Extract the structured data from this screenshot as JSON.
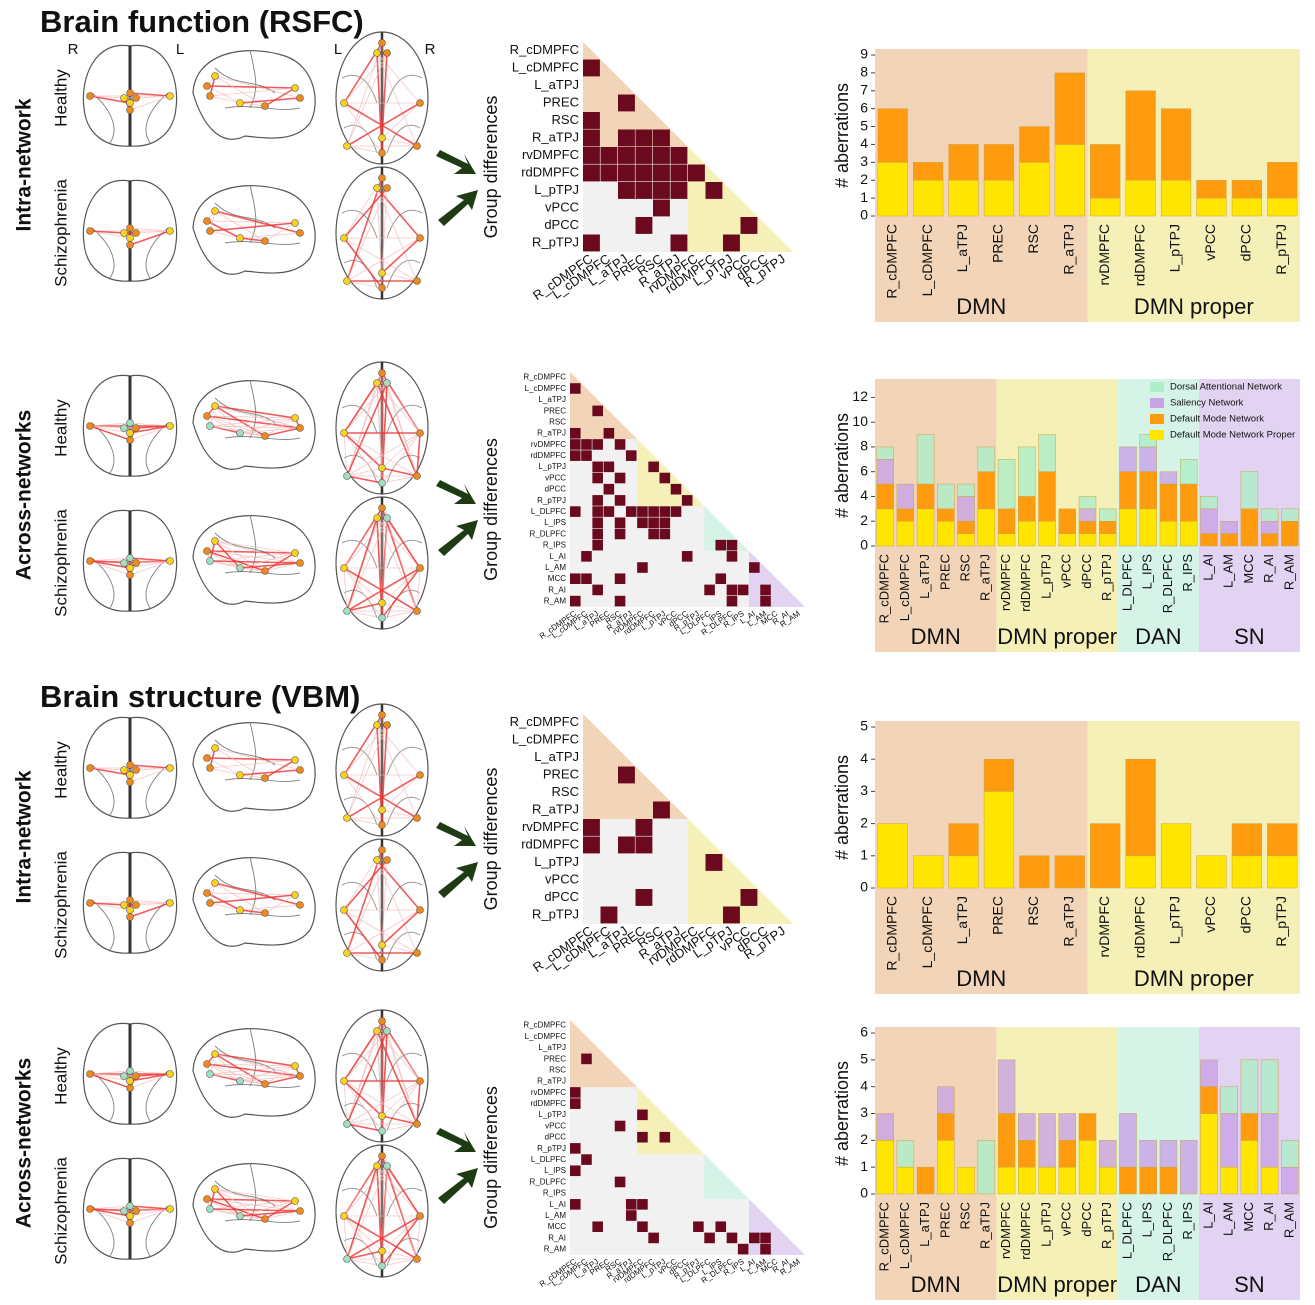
{
  "sections": [
    "Brain function (RSFC)",
    "Brain structure (VBM)"
  ],
  "orientation_labels": [
    "R",
    "L",
    "L",
    "R"
  ],
  "rows": [
    {
      "label": "Intra-network",
      "groups": [
        "Healthy",
        "Schizophrenia"
      ]
    },
    {
      "label": "Across-networks",
      "groups": [
        "Healthy",
        "Schizophrenia"
      ]
    },
    {
      "label": "Intra-network",
      "groups": [
        "Healthy",
        "Schizophrenia"
      ]
    },
    {
      "label": "Across-networks",
      "groups": [
        "Healthy",
        "Schizophrenia"
      ]
    }
  ],
  "chart_data": [
    {
      "type": "heatmap",
      "ylabel": "Group differences",
      "color": "#6b0a1e",
      "labels": [
        "R_cDMPFC",
        "L_cDMPFC",
        "L_aTPJ",
        "PREC",
        "RSC",
        "R_aTPJ",
        "rvDMPFC",
        "rdDMPFC",
        "L_pTPJ",
        "vPCC",
        "dPCC",
        "R_pTPJ"
      ],
      "cells": [
        [],
        [
          0
        ],
        [],
        [
          2
        ],
        [
          0
        ],
        [
          0,
          2,
          3,
          4
        ],
        [
          0,
          1,
          2,
          3,
          4,
          5
        ],
        [
          0,
          1,
          2,
          3,
          4,
          5,
          6
        ],
        [
          2,
          3,
          4,
          5,
          7
        ],
        [
          4
        ],
        [
          3,
          9
        ],
        [
          0,
          5,
          8
        ]
      ]
    },
    {
      "type": "bar",
      "ylabel": "# aberrations",
      "categories": [
        "R_cDMPFC",
        "L_cDMPFC",
        "L_aTPJ",
        "PREC",
        "RSC",
        "R_aTPJ",
        "rvDMPFC",
        "rdDMPFC",
        "L_pTPJ",
        "vPCC",
        "dPCC",
        "R_pTPJ"
      ],
      "series": [
        {
          "color": "#ffe500",
          "values": [
            3,
            2,
            2,
            2,
            3,
            4,
            1,
            2,
            2,
            1,
            1,
            1
          ]
        },
        {
          "color": "#ff9b0f",
          "values": [
            3,
            1,
            2,
            2,
            2,
            4,
            3,
            5,
            4,
            1,
            1,
            2
          ]
        }
      ],
      "ylim": [
        0,
        9
      ],
      "yticks": [
        0,
        1,
        2,
        3,
        4,
        5,
        6,
        7,
        8,
        9
      ],
      "groups": [
        {
          "label": "DMN",
          "size": 6,
          "color": "#f2d5b8"
        },
        {
          "label": "DMN proper",
          "size": 6,
          "color": "#f4f0b8"
        }
      ]
    },
    {
      "type": "heatmap",
      "ylabel": "Group differences",
      "color": "#6b0a1e",
      "labels": [
        "R_cDMPFC",
        "L_cDMPFC",
        "L_aTPJ",
        "PREC",
        "RSC",
        "R_aTPJ",
        "rvDMPFC",
        "rdDMPFC",
        "L_pTPJ",
        "vPCC",
        "dPCC",
        "R_pTPJ",
        "L_DLPFC",
        "L_IPS",
        "R_DLPFC",
        "R_IPS",
        "L_AI",
        "L_AM",
        "MCC",
        "R_AI",
        "R_AM"
      ],
      "cells": [
        [],
        [
          0
        ],
        [],
        [
          2
        ],
        [],
        [
          0,
          3
        ],
        [
          0,
          1,
          2,
          4
        ],
        [
          0,
          1,
          5
        ],
        [
          2,
          3,
          7
        ],
        [
          2,
          4,
          8
        ],
        [
          3,
          9
        ],
        [
          2,
          4,
          10
        ],
        [
          0,
          2,
          3,
          5,
          6,
          7,
          8,
          9
        ],
        [
          2,
          4,
          6,
          7,
          8
        ],
        [
          2,
          4,
          7,
          8
        ],
        [
          2,
          13,
          14
        ],
        [
          1,
          10,
          14
        ],
        [
          6,
          16
        ],
        [
          0,
          1,
          4,
          13
        ],
        [
          2,
          12,
          14,
          15,
          17
        ],
        [
          0,
          4,
          14,
          17
        ]
      ]
    },
    {
      "type": "bar",
      "ylabel": "# aberrations",
      "categories": [
        "R_cDMPFC",
        "L_cDMPFC",
        "L_aTPJ",
        "PREC",
        "RSC",
        "R_aTPJ",
        "rvDMPFC",
        "rdDMPFC",
        "L_pTPJ",
        "vPCC",
        "dPCC",
        "R_pTPJ",
        "L_DLPFC",
        "L_IPS",
        "R_DLPFC",
        "R_IPS",
        "L_AI",
        "L_AM",
        "MCC",
        "R_AI",
        "R_AM"
      ],
      "series": [
        {
          "name": "Default Mode Network Proper",
          "color": "#ffe500",
          "values": [
            3,
            2,
            3,
            2,
            1,
            3,
            1,
            2,
            2,
            1,
            1,
            1,
            3,
            3,
            2,
            2,
            0,
            0,
            0,
            0,
            0
          ]
        },
        {
          "name": "Default Mode Network",
          "color": "#ff9b0f",
          "values": [
            2,
            1,
            2,
            1,
            1,
            3,
            2,
            2,
            4,
            2,
            1,
            1,
            3,
            3,
            3,
            3,
            1,
            1,
            3,
            1,
            2
          ]
        },
        {
          "name": "Saliency Network",
          "color": "#c8a3e6",
          "values": [
            2,
            2,
            0,
            0,
            2,
            0,
            0,
            0,
            0,
            0,
            1,
            0,
            2,
            2,
            1,
            0,
            2,
            1,
            0,
            1,
            0
          ]
        },
        {
          "name": "Dorsal Attentional Network",
          "color": "#aeeec8",
          "values": [
            1,
            0,
            4,
            2,
            1,
            2,
            4,
            4,
            3,
            0,
            1,
            1,
            0,
            1,
            0,
            2,
            1,
            0,
            3,
            1,
            1
          ]
        }
      ],
      "ylim": [
        0,
        13
      ],
      "yticks": [
        0,
        2,
        4,
        6,
        8,
        10,
        12
      ],
      "legend": "upper right",
      "groups": [
        {
          "label": "DMN",
          "size": 6,
          "color": "#f2d5b8"
        },
        {
          "label": "DMN proper",
          "size": 6,
          "color": "#f4f0b8"
        },
        {
          "label": "DAN",
          "size": 4,
          "color": "#d6f3e8"
        },
        {
          "label": "SN",
          "size": 5,
          "color": "#e3d3f2"
        }
      ]
    },
    {
      "type": "heatmap",
      "ylabel": "Group differences",
      "color": "#6b0a1e",
      "labels": [
        "R_cDMPFC",
        "L_cDMPFC",
        "L_aTPJ",
        "PREC",
        "RSC",
        "R_aTPJ",
        "rvDMPFC",
        "rdDMPFC",
        "L_pTPJ",
        "vPCC",
        "dPCC",
        "R_pTPJ"
      ],
      "cells": [
        [],
        [],
        [],
        [
          2
        ],
        [],
        [
          4
        ],
        [
          0,
          3
        ],
        [
          0,
          2,
          3
        ],
        [
          7
        ],
        [],
        [
          3,
          9
        ],
        [
          1,
          8
        ]
      ]
    },
    {
      "type": "bar",
      "ylabel": "# aberrations",
      "categories": [
        "R_cDMPFC",
        "L_cDMPFC",
        "L_aTPJ",
        "PREC",
        "RSC",
        "R_aTPJ",
        "rvDMPFC",
        "rdDMPFC",
        "L_pTPJ",
        "vPCC",
        "dPCC",
        "R_pTPJ"
      ],
      "series": [
        {
          "color": "#ffe500",
          "values": [
            2,
            1,
            1,
            3,
            0,
            0,
            0,
            1,
            2,
            1,
            1,
            1
          ]
        },
        {
          "color": "#ff9b0f",
          "values": [
            0,
            0,
            1,
            1,
            1,
            1,
            2,
            3,
            0,
            0,
            1,
            1
          ]
        }
      ],
      "ylim": [
        0,
        5
      ],
      "yticks": [
        0,
        1,
        2,
        3,
        4,
        5
      ],
      "groups": [
        {
          "label": "DMN",
          "size": 6,
          "color": "#f2d5b8"
        },
        {
          "label": "DMN proper",
          "size": 6,
          "color": "#f4f0b8"
        }
      ]
    },
    {
      "type": "heatmap",
      "ylabel": "Group differences",
      "color": "#6b0a1e",
      "labels": [
        "R_cDMPFC",
        "L_cDMPFC",
        "L_aTPJ",
        "PREC",
        "RSC",
        "R_aTPJ",
        "rvDMPFC",
        "rdDMPFC",
        "L_pTPJ",
        "vPCC",
        "dPCC",
        "R_pTPJ",
        "L_DLPFC",
        "L_IPS",
        "R_DLPFC",
        "R_IPS",
        "L_AI",
        "L_AM",
        "MCC",
        "R_AI",
        "R_AM"
      ],
      "cells": [
        [],
        [],
        [],
        [
          1
        ],
        [],
        [],
        [
          0
        ],
        [
          0
        ],
        [
          6
        ],
        [
          4
        ],
        [
          6,
          8
        ],
        [
          0
        ],
        [
          1
        ],
        [
          0
        ],
        [
          4
        ],
        [],
        [
          0,
          5,
          6
        ],
        [
          5
        ],
        [
          2,
          6,
          11,
          13
        ],
        [
          7,
          12,
          14,
          16,
          17
        ],
        [
          15,
          17
        ]
      ]
    },
    {
      "type": "bar",
      "ylabel": "# aberrations",
      "categories": [
        "R_cDMPFC",
        "L_cDMPFC",
        "L_aTPJ",
        "PREC",
        "RSC",
        "R_aTPJ",
        "rvDMPFC",
        "rdDMPFC",
        "L_pTPJ",
        "vPCC",
        "dPCC",
        "R_pTPJ",
        "L_DLPFC",
        "L_IPS",
        "R_DLPFC",
        "R_IPS",
        "L_AI",
        "L_AM",
        "MCC",
        "R_AI",
        "R_AM"
      ],
      "series": [
        {
          "color": "#ffe500",
          "values": [
            2,
            1,
            0,
            2,
            1,
            0,
            1,
            1,
            1,
            1,
            2,
            1,
            0,
            0,
            0,
            0,
            3,
            1,
            2,
            1,
            0
          ]
        },
        {
          "color": "#ff9b0f",
          "values": [
            0,
            0,
            1,
            1,
            0,
            0,
            2,
            1,
            0,
            1,
            1,
            0,
            1,
            1,
            1,
            0,
            1,
            0,
            1,
            0,
            0
          ]
        },
        {
          "color": "#c8a3e6",
          "values": [
            1,
            0,
            0,
            1,
            0,
            0,
            2,
            1,
            2,
            1,
            0,
            1,
            2,
            1,
            1,
            2,
            1,
            2,
            0,
            2,
            1
          ]
        },
        {
          "color": "#aeeec8",
          "values": [
            0,
            1,
            0,
            0,
            0,
            2,
            0,
            0,
            0,
            0,
            0,
            0,
            0,
            0,
            0,
            0,
            0,
            1,
            2,
            2,
            1
          ]
        }
      ],
      "ylim": [
        0,
        6
      ],
      "yticks": [
        0,
        1,
        2,
        3,
        4,
        5,
        6
      ],
      "groups": [
        {
          "label": "DMN",
          "size": 6,
          "color": "#f2d5b8"
        },
        {
          "label": "DMN proper",
          "size": 6,
          "color": "#f4f0b8"
        },
        {
          "label": "DAN",
          "size": 4,
          "color": "#d6f3e8"
        },
        {
          "label": "SN",
          "size": 5,
          "color": "#e3d3f2"
        }
      ]
    }
  ]
}
